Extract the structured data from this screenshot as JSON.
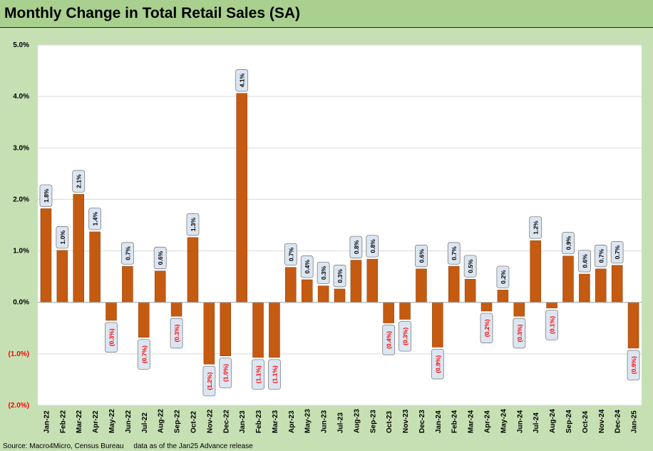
{
  "title": "Monthly Change in Total Retail Sales (SA)",
  "source": "Source: Macro4Micro, Census Bureau     data as of the Jan25 Advance release",
  "colors": {
    "bar": "#c55a11",
    "positive_label": "#000000",
    "negative_label": "#ff0000",
    "label_box": "#dce6f2",
    "background": "#c6e0b4",
    "title_bar": "#a9d08e"
  },
  "chart_data": {
    "type": "bar",
    "ylim": [
      -2.0,
      5.0
    ],
    "yticks": [
      -2.0,
      -1.0,
      0.0,
      1.0,
      2.0,
      3.0,
      4.0,
      5.0
    ],
    "ytick_labels": [
      "(2.0%)",
      "(1.0%)",
      "0.0%",
      "1.0%",
      "2.0%",
      "3.0%",
      "4.0%",
      "5.0%"
    ],
    "grid": true,
    "categories": [
      "Jan-22",
      "Feb-22",
      "Mar-22",
      "Apr-22",
      "May-22",
      "Jun-22",
      "Jul-22",
      "Aug-22",
      "Sep-22",
      "Oct-22",
      "Nov-22",
      "Dec-22",
      "Jan-23",
      "Feb-23",
      "Mar-23",
      "Apr-23",
      "May-23",
      "Jun-23",
      "Jul-23",
      "Aug-23",
      "Sep-23",
      "Oct-23",
      "Nov-23",
      "Dec-23",
      "Jan-24",
      "Feb-24",
      "Mar-24",
      "Apr-24",
      "May-24",
      "Jun-24",
      "Jul-24",
      "Aug-24",
      "Sep-24",
      "Oct-24",
      "Nov-24",
      "Dec-24",
      "Jan-25"
    ],
    "values": [
      1.82,
      1.01,
      2.1,
      1.37,
      -0.35,
      0.7,
      -0.68,
      0.61,
      -0.27,
      1.26,
      -1.2,
      -1.04,
      4.06,
      -1.07,
      -1.07,
      0.68,
      0.44,
      0.32,
      0.26,
      0.82,
      0.84,
      -0.4,
      -0.33,
      0.65,
      -0.87,
      0.7,
      0.45,
      -0.17,
      0.24,
      -0.27,
      1.2,
      -0.11,
      0.9,
      0.55,
      0.65,
      0.72,
      -0.89
    ],
    "data_labels": [
      "1.8%",
      "1.0%",
      "2.1%",
      "1.4%",
      "(0.3%)",
      "0.7%",
      "(0.7%)",
      "0.6%",
      "(0.3%)",
      "1.3%",
      "(1.2%)",
      "(1.0%)",
      "4.1%",
      "(1.1%)",
      "(1.1%)",
      "0.7%",
      "0.4%",
      "0.3%",
      "0.3%",
      "0.8%",
      "0.8%",
      "(0.4%)",
      "(0.3%)",
      "0.6%",
      "(0.9%)",
      "0.7%",
      "0.5%",
      "(0.2%)",
      "0.2%",
      "(0.3%)",
      "1.2%",
      "(0.1%)",
      "0.9%",
      "0.6%",
      "0.7%",
      "0.7%",
      "(0.9%)"
    ]
  }
}
